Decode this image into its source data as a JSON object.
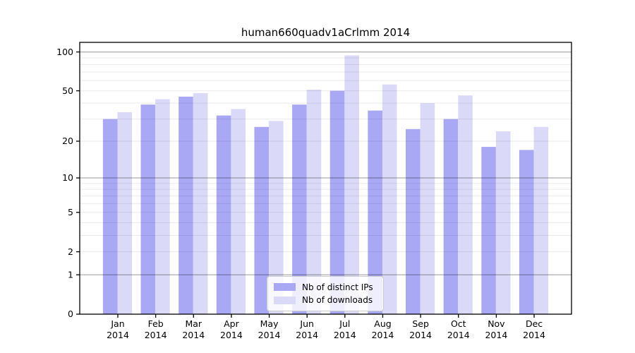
{
  "title": "human660quadv1aCrlmm 2014",
  "colors": {
    "distinct_ips_bar": "#a8a8f5",
    "downloads_bar": "#dadaf8",
    "grid_major": "rgba(0,0,0,0.32)",
    "grid_minor": "rgba(0,0,0,0.08)",
    "axis": "#000000",
    "background": "#ffffff"
  },
  "chart_data": {
    "type": "bar",
    "title": "human660quadv1aCrlmm 2014",
    "categories": [
      {
        "month": "Jan",
        "year": "2014"
      },
      {
        "month": "Feb",
        "year": "2014"
      },
      {
        "month": "Mar",
        "year": "2014"
      },
      {
        "month": "Apr",
        "year": "2014"
      },
      {
        "month": "May",
        "year": "2014"
      },
      {
        "month": "Jun",
        "year": "2014"
      },
      {
        "month": "Jul",
        "year": "2014"
      },
      {
        "month": "Aug",
        "year": "2014"
      },
      {
        "month": "Sep",
        "year": "2014"
      },
      {
        "month": "Oct",
        "year": "2014"
      },
      {
        "month": "Nov",
        "year": "2014"
      },
      {
        "month": "Dec",
        "year": "2014"
      }
    ],
    "series": [
      {
        "name": "Nb of distinct IPs",
        "color": "#a8a8f5",
        "values": [
          30,
          39,
          45,
          32,
          26,
          39,
          50,
          35,
          25,
          30,
          18,
          17
        ]
      },
      {
        "name": "Nb of downloads",
        "color": "#dadaf8",
        "values": [
          34,
          43,
          48,
          36,
          29,
          51,
          94,
          56,
          40,
          46,
          24,
          26
        ]
      }
    ],
    "xlabel": "",
    "ylabel": "",
    "yscale": "log1p",
    "ylim": [
      0,
      117
    ],
    "yticks": [
      0,
      1,
      2,
      5,
      10,
      20,
      50,
      100
    ],
    "major_gridlines": [
      1,
      10,
      100
    ],
    "minor_gridlines": [
      2,
      3,
      4,
      5,
      6,
      7,
      8,
      9,
      20,
      30,
      40,
      50,
      60,
      70,
      80,
      90
    ],
    "grid": true,
    "legend_position": "lower-center"
  }
}
